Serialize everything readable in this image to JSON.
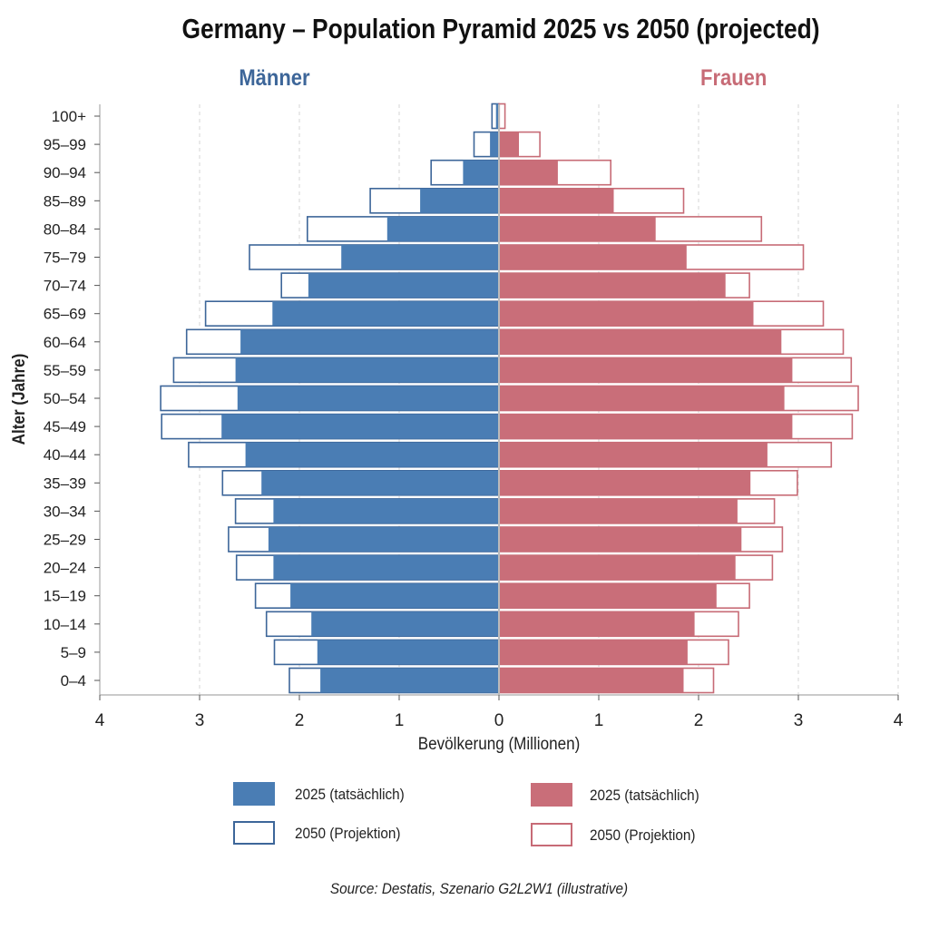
{
  "chart_data": {
    "type": "bar",
    "title": "Germany – Population Pyramid 2025 vs 2050 (projected)",
    "left_label": "Männer",
    "right_label": "Frauen",
    "xlabel": "Bevölkerung (Millionen)",
    "ylabel": "Alter (Jahre)",
    "xlim": [
      -4,
      4
    ],
    "xticks": [
      "4",
      "3",
      "2",
      "1",
      "0",
      "1",
      "2",
      "3",
      "4"
    ],
    "categories": [
      "100+",
      "95–99",
      "90–94",
      "85–89",
      "80–84",
      "75–79",
      "70–74",
      "65–69",
      "60–64",
      "55–59",
      "50–54",
      "45–49",
      "40–44",
      "35–39",
      "30–34",
      "25–29",
      "20–24",
      "15–19",
      "10–14",
      "5–9",
      "0–4"
    ],
    "series": [
      {
        "name": "Männer 2025 (tatsächlich)",
        "side": "left",
        "style": "filled",
        "values": [
          0.03,
          0.09,
          0.36,
          0.79,
          1.12,
          1.58,
          1.91,
          2.27,
          2.59,
          2.64,
          2.62,
          2.78,
          2.54,
          2.38,
          2.26,
          2.31,
          2.26,
          2.09,
          1.88,
          1.82,
          1.79
        ]
      },
      {
        "name": "Männer 2050 (Projektion)",
        "side": "left",
        "style": "outline",
        "values": [
          0.07,
          0.25,
          0.68,
          1.29,
          1.92,
          2.5,
          2.18,
          2.94,
          3.13,
          3.26,
          3.39,
          3.38,
          3.11,
          2.77,
          2.64,
          2.71,
          2.63,
          2.44,
          2.33,
          2.25,
          2.1
        ]
      },
      {
        "name": "Frauen 2025 (tatsächlich)",
        "side": "right",
        "style": "filled",
        "values": [
          0.01,
          0.2,
          0.59,
          1.15,
          1.57,
          1.88,
          2.27,
          2.55,
          2.83,
          2.94,
          2.86,
          2.94,
          2.69,
          2.52,
          2.39,
          2.43,
          2.37,
          2.18,
          1.96,
          1.89,
          1.85
        ]
      },
      {
        "name": "Frauen 2050 (Projektion)",
        "side": "right",
        "style": "outline",
        "values": [
          0.06,
          0.41,
          1.12,
          1.85,
          2.63,
          3.05,
          2.51,
          3.25,
          3.45,
          3.53,
          3.6,
          3.54,
          3.33,
          2.99,
          2.76,
          2.84,
          2.74,
          2.51,
          2.4,
          2.3,
          2.15
        ]
      }
    ],
    "legend": {
      "men": [
        "2025 (tatsächlich)",
        "2050 (Projektion)"
      ],
      "women": [
        "2025 (tatsächlich)",
        "2050 (Projektion)"
      ],
      "placement": "bottom"
    },
    "grid": true,
    "source": "Source: Destatis, Szenario G2L2W1 (illustrative)"
  },
  "colors": {
    "men": "#4a7db4",
    "men_edge": "#3d6699",
    "women": "#c96e79",
    "women_edge": "#c76b76"
  }
}
